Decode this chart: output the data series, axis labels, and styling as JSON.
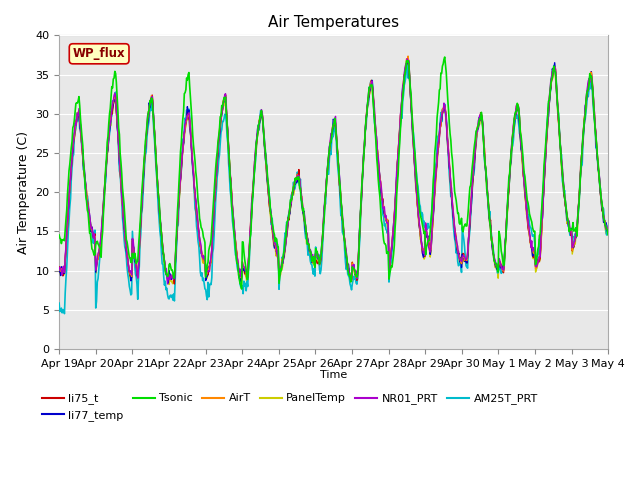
{
  "title": "Air Temperatures",
  "ylabel": "Air Temperature (C)",
  "xlabel": "Time",
  "ylim": [
    0,
    40
  ],
  "yticks": [
    0,
    5,
    10,
    15,
    20,
    25,
    30,
    35,
    40
  ],
  "background_color": "#e8e8e8",
  "series": [
    {
      "name": "li75_t",
      "color": "#cc0000",
      "lw": 1.0,
      "zorder": 5
    },
    {
      "name": "li77_temp",
      "color": "#0000cc",
      "lw": 1.0,
      "zorder": 5
    },
    {
      "name": "Tsonic",
      "color": "#00dd00",
      "lw": 1.2,
      "zorder": 6
    },
    {
      "name": "AirT",
      "color": "#ff8800",
      "lw": 1.0,
      "zorder": 5
    },
    {
      "name": "PanelTemp",
      "color": "#cccc00",
      "lw": 1.0,
      "zorder": 4
    },
    {
      "name": "NR01_PRT",
      "color": "#aa00cc",
      "lw": 1.0,
      "zorder": 5
    },
    {
      "name": "AM25T_PRT",
      "color": "#00bbcc",
      "lw": 1.2,
      "zorder": 4
    }
  ],
  "xtick_labels": [
    "Apr 19",
    "Apr 20",
    "Apr 21",
    "Apr 22",
    "Apr 23",
    "Apr 24",
    "Apr 25",
    "Apr 26",
    "Apr 27",
    "Apr 28",
    "Apr 29",
    "Apr 30",
    "May 1",
    "May 2",
    "May 3",
    "May 4"
  ],
  "wp_flux_label": "WP_flux",
  "wp_flux_facecolor": "#ffffc0",
  "wp_flux_edgecolor": "#cc0000",
  "wp_flux_textcolor": "#880000",
  "legend_ncol": 6
}
